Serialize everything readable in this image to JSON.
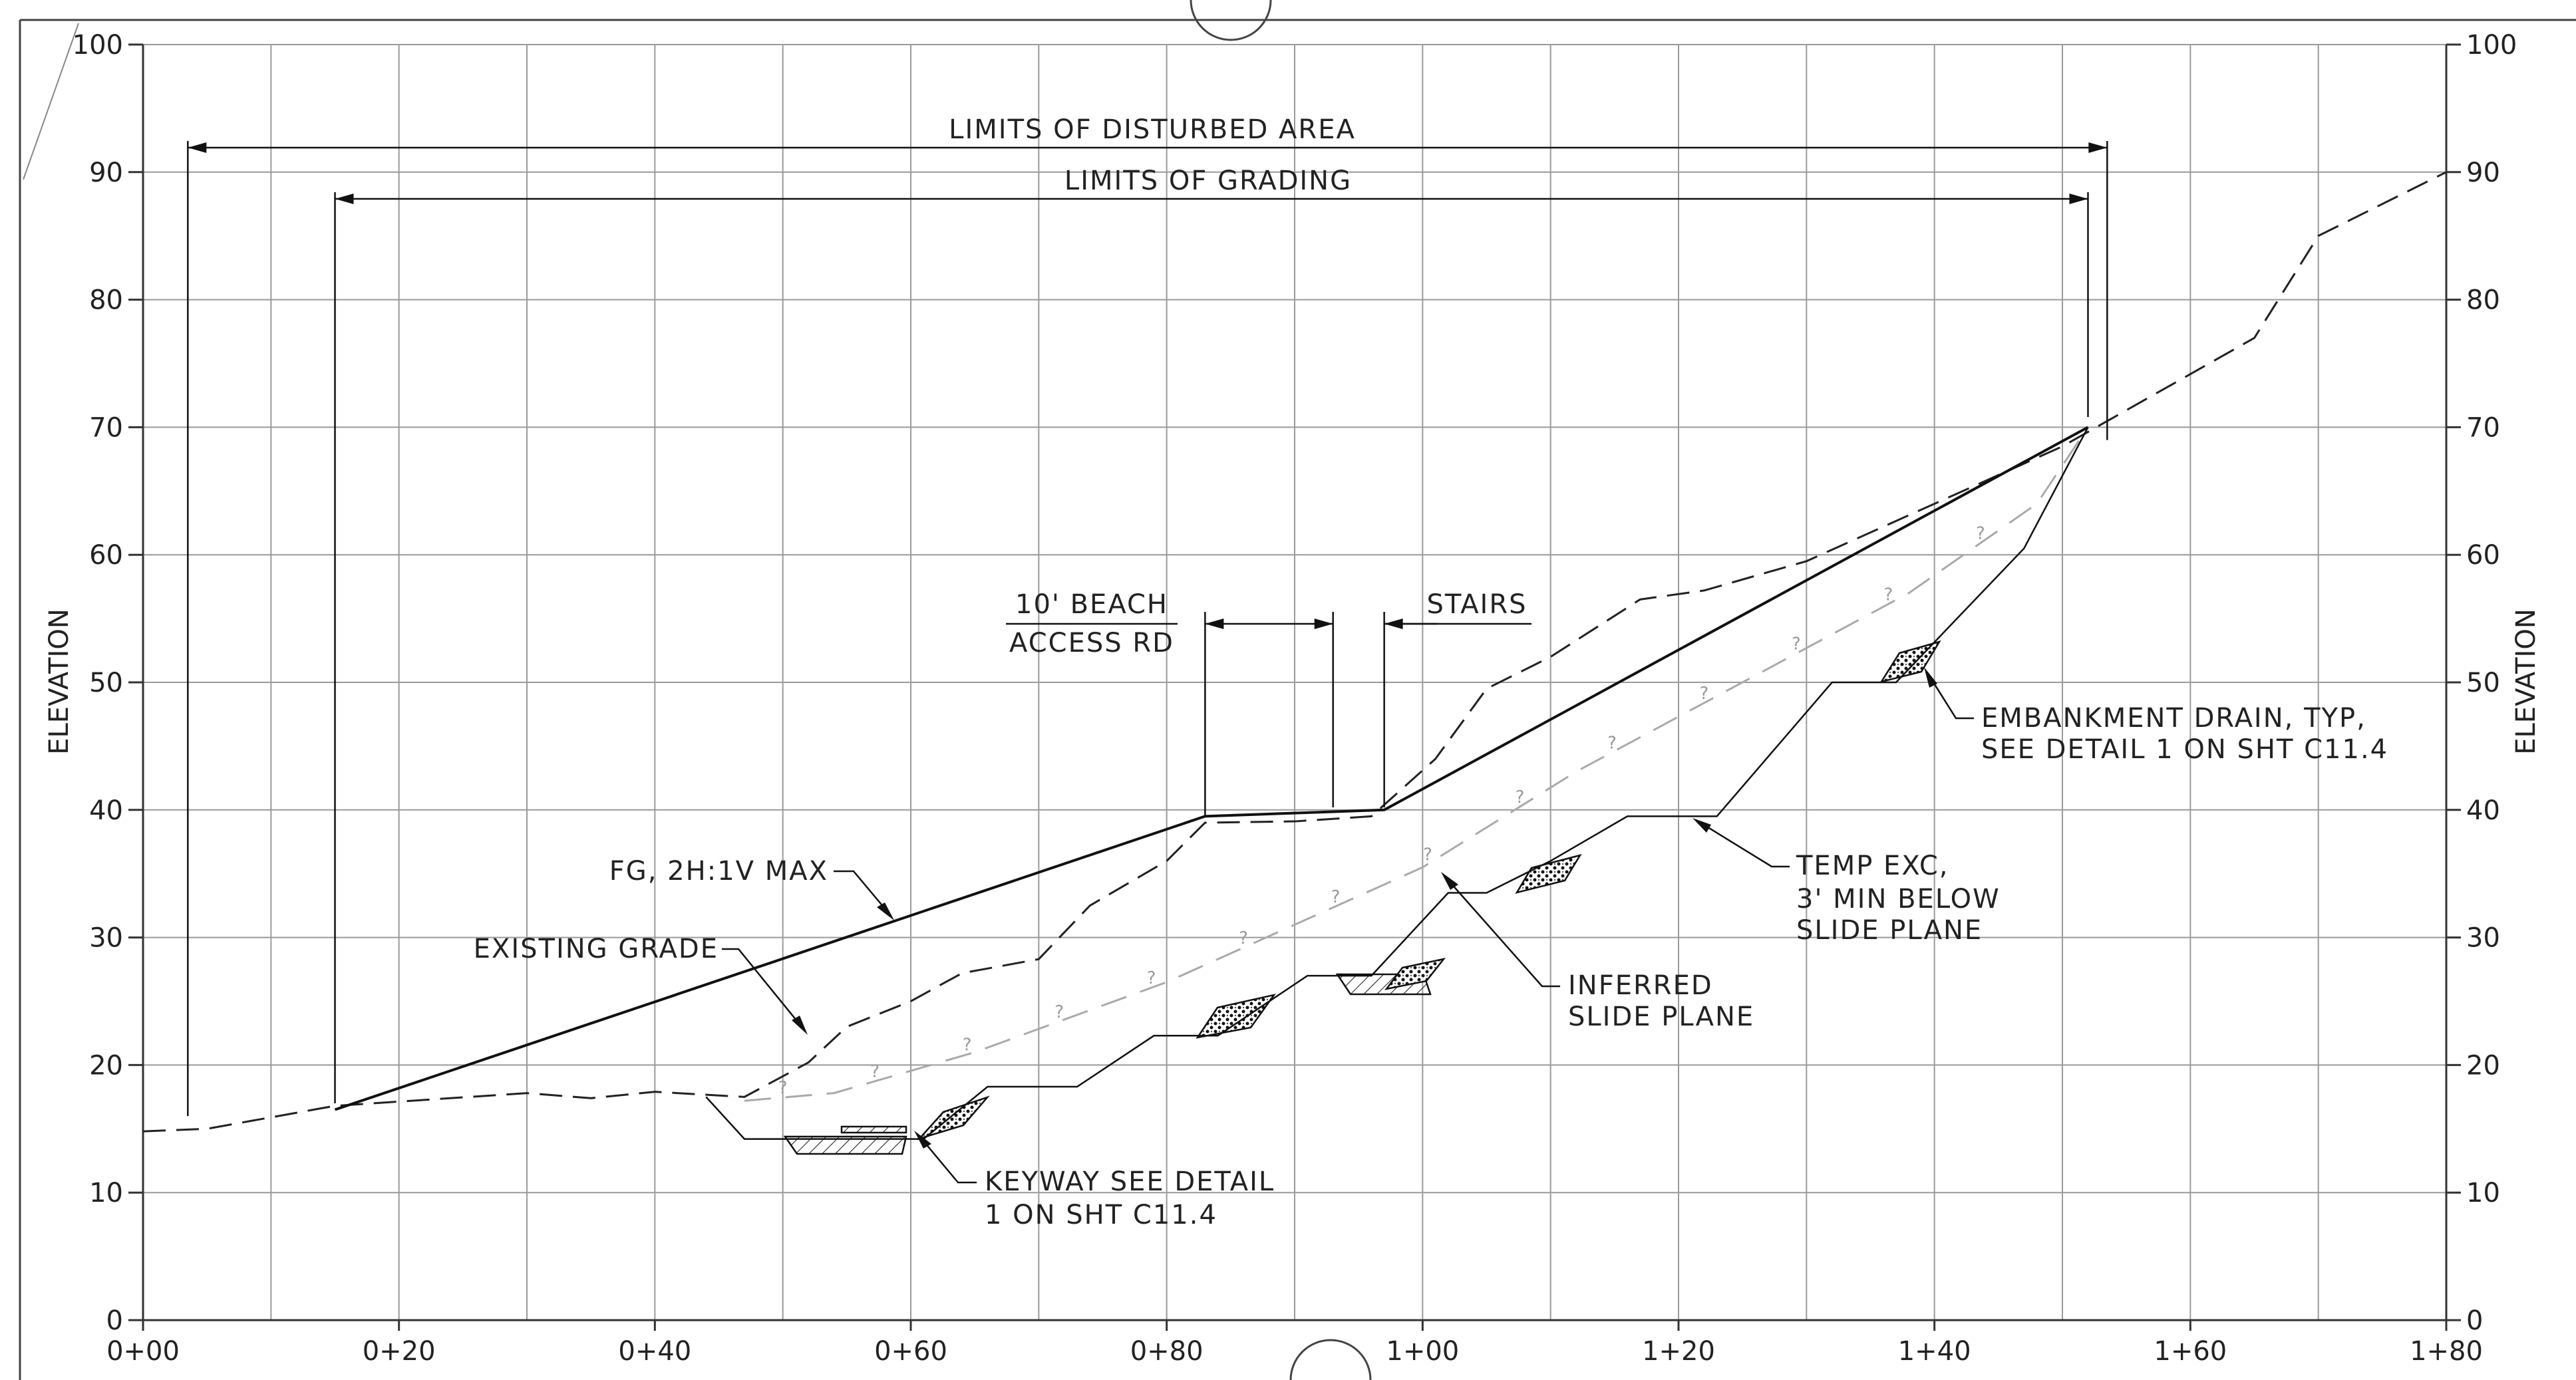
{
  "axes": {
    "y_label": "ELEVATION",
    "y_ticks": [
      "0",
      "10",
      "20",
      "30",
      "40",
      "50",
      "60",
      "70",
      "80",
      "90",
      "100"
    ],
    "x_ticks": [
      "0+00",
      "0+20",
      "0+40",
      "0+60",
      "0+80",
      "1+00",
      "1+20",
      "1+40",
      "1+60",
      "1+80"
    ],
    "x_range_ft": [
      0,
      180
    ],
    "y_range_ft": [
      0,
      100
    ],
    "grid_step_x_ft": 10,
    "grid_step_y_ft": 10
  },
  "dimensions": {
    "limits_disturbed": {
      "label": "LIMITS OF DISTURBED AREA",
      "from_ft": 3.5,
      "to_ft": 153.5
    },
    "limits_grading": {
      "label": "LIMITS OF GRADING",
      "from_ft": 15,
      "to_ft": 152
    },
    "beach_access": {
      "label_line1": "10' BEACH",
      "label_line2": "ACCESS RD",
      "from_ft": 83,
      "to_ft": 93
    },
    "stairs": {
      "label": "STAIRS",
      "at_ft": 97
    }
  },
  "callouts": {
    "fg": "FG, 2H:1V MAX",
    "existing_grade": "EXISTING GRADE",
    "keyway_line1": "KEYWAY SEE DETAIL",
    "keyway_line2": "1 ON SHT C11.4",
    "inferred_line1": "INFERRED",
    "inferred_line2": "SLIDE PLANE",
    "temp_exc_line1": "TEMP EXC,",
    "temp_exc_line2": "3' MIN BELOW",
    "temp_exc_line3": "SLIDE PLANE",
    "drain_line1": "EMBANKMENT DRAIN, TYP,",
    "drain_line2": "SEE DETAIL 1 ON SHT C11.4"
  },
  "profiles": {
    "finished_grade": [
      [
        15,
        16.5
      ],
      [
        83,
        39.5
      ],
      [
        97,
        40
      ],
      [
        152,
        70
      ]
    ],
    "existing_grade": [
      [
        0,
        14.8
      ],
      [
        5,
        15
      ],
      [
        15,
        16.8
      ],
      [
        30,
        17.8
      ],
      [
        35,
        17.4
      ],
      [
        40,
        17.9
      ],
      [
        47,
        17.5
      ],
      [
        52,
        20.2
      ],
      [
        55,
        23
      ],
      [
        60,
        25
      ],
      [
        64,
        27.2
      ],
      [
        70,
        28.3
      ],
      [
        74,
        32.5
      ],
      [
        80,
        36
      ],
      [
        83,
        39
      ],
      [
        90,
        39.1
      ],
      [
        96,
        39.5
      ],
      [
        101,
        44
      ],
      [
        105,
        49.5
      ],
      [
        110,
        52
      ],
      [
        117,
        56.5
      ],
      [
        122,
        57.2
      ],
      [
        130,
        59.5
      ],
      [
        140,
        64
      ],
      [
        150,
        68.5
      ],
      [
        165,
        77
      ],
      [
        170,
        85
      ],
      [
        178,
        89
      ],
      [
        180,
        90
      ]
    ],
    "slide_plane": [
      [
        47,
        17.2
      ],
      [
        54,
        17.8
      ],
      [
        65,
        21
      ],
      [
        80,
        26.5
      ],
      [
        90,
        31
      ],
      [
        100,
        35.5
      ],
      [
        112,
        43
      ],
      [
        125,
        50
      ],
      [
        138,
        57
      ],
      [
        148,
        64
      ],
      [
        152,
        70
      ]
    ],
    "temp_excavation": [
      [
        44,
        17.5
      ],
      [
        47,
        14.2
      ],
      [
        61,
        14.2
      ],
      [
        66,
        18.3
      ],
      [
        73,
        18.3
      ],
      [
        79,
        22.3
      ],
      [
        84,
        22.3
      ],
      [
        91,
        27
      ],
      [
        96,
        27
      ],
      [
        102,
        33.5
      ],
      [
        105,
        33.5
      ],
      [
        110,
        36
      ],
      [
        116,
        39.5
      ],
      [
        123,
        39.5
      ],
      [
        132,
        50
      ],
      [
        137,
        50
      ],
      [
        147,
        60.5
      ],
      [
        152,
        70
      ]
    ]
  }
}
